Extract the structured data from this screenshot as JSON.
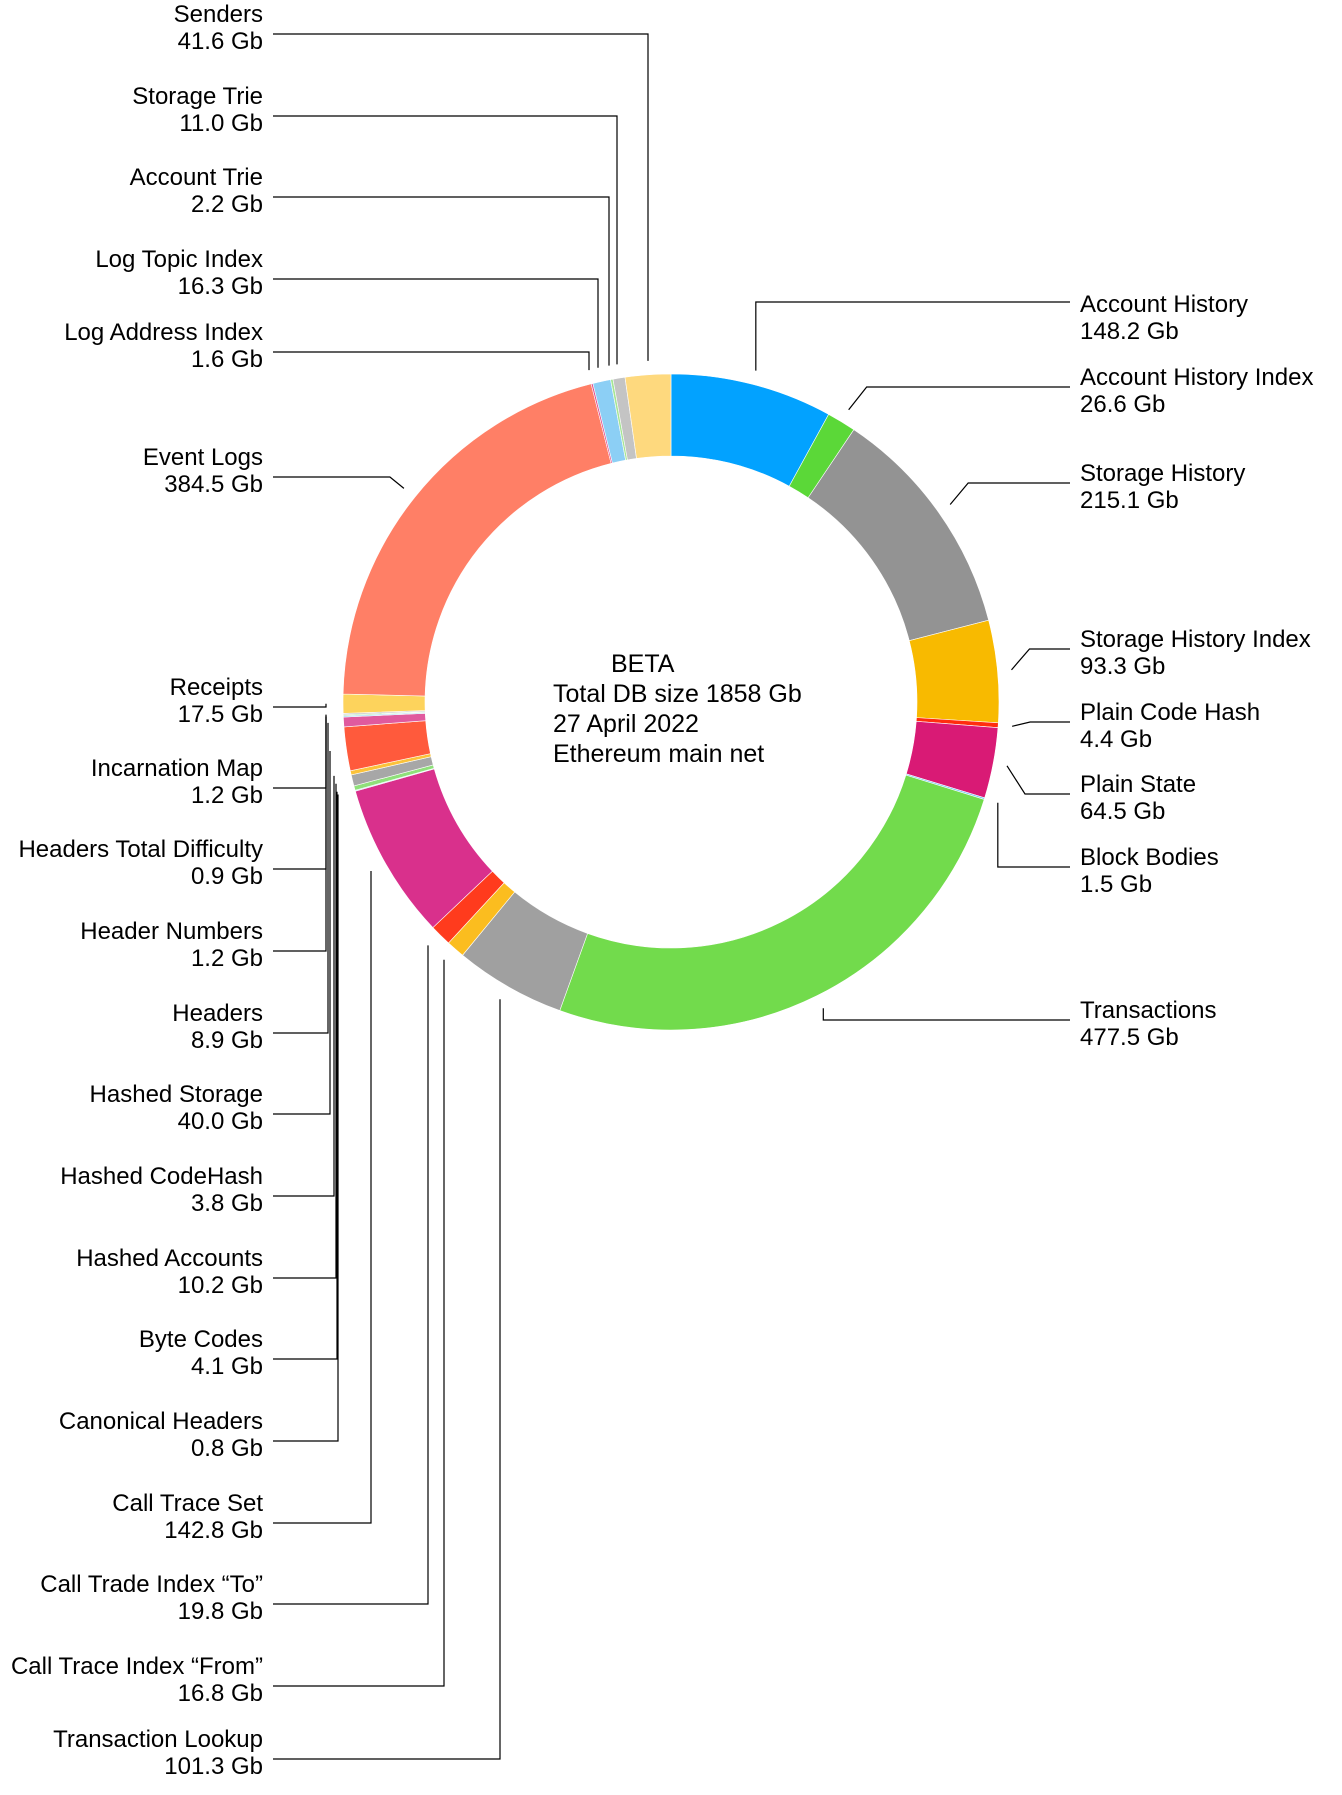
{
  "chart_data": {
    "type": "pie",
    "variant": "donut",
    "unit": "Gb",
    "center_text": [
      "BETA",
      "Total DB size 1858 Gb",
      "27 April 2022",
      "Ethereum main net"
    ],
    "slices": [
      {
        "label": "Account History",
        "value": 148.2,
        "value_text": "148.2 Gb",
        "color": "#02a2ff"
      },
      {
        "label": "Account History Index",
        "value": 26.6,
        "value_text": "26.6 Gb",
        "color": "#5bd838"
      },
      {
        "label": "Storage History",
        "value": 215.1,
        "value_text": "215.1 Gb",
        "color": "#939393"
      },
      {
        "label": "Storage History Index",
        "value": 93.3,
        "value_text": "93.3 Gb",
        "color": "#f8ba00"
      },
      {
        "label": "Plain Code Hash",
        "value": 4.4,
        "value_text": "4.4 Gb",
        "color": "#ff2d0e"
      },
      {
        "label": "Plain State",
        "value": 64.5,
        "value_text": "64.5 Gb",
        "color": "#d91a75"
      },
      {
        "label": "Block Bodies",
        "value": 1.5,
        "value_text": "1.5 Gb",
        "color": "#74c8f0"
      },
      {
        "label": "Transactions",
        "value": 477.5,
        "value_text": "477.5 Gb",
        "color": "#72db4c"
      },
      {
        "label": "Transaction Lookup",
        "value": 101.3,
        "value_text": "101.3 Gb",
        "color": "#a0a0a0"
      },
      {
        "label": "Call Trace Index “From”",
        "value": 16.8,
        "value_text": "16.8 Gb",
        "color": "#fbbd1f"
      },
      {
        "label": "Call Trade Index “To”",
        "value": 19.8,
        "value_text": "19.8 Gb",
        "color": "#ff3b1d"
      },
      {
        "label": "Call Trace Set",
        "value": 142.8,
        "value_text": "142.8 Gb",
        "color": "#d9308c"
      },
      {
        "label": "Canonical Headers",
        "value": 0.8,
        "value_text": "0.8 Gb",
        "color": "#9ad7f5"
      },
      {
        "label": "Byte Codes",
        "value": 4.1,
        "value_text": "4.1 Gb",
        "color": "#8fe07a"
      },
      {
        "label": "Hashed Accounts",
        "value": 10.2,
        "value_text": "10.2 Gb",
        "color": "#a7a7a7"
      },
      {
        "label": "Hashed CodeHash",
        "value": 3.8,
        "value_text": "3.8 Gb",
        "color": "#fbc23a"
      },
      {
        "label": "Hashed Storage",
        "value": 40.0,
        "value_text": "40.0 Gb",
        "color": "#ff5a3c"
      },
      {
        "label": "Headers",
        "value": 8.9,
        "value_text": "8.9 Gb",
        "color": "#e05a9e"
      },
      {
        "label": "Header Numbers",
        "value": 1.2,
        "value_text": "1.2 Gb",
        "color": "#9bd5f2"
      },
      {
        "label": "Headers Total Difficulty",
        "value": 0.9,
        "value_text": "0.9 Gb",
        "color": "#9ae08a"
      },
      {
        "label": "Incarnation Map",
        "value": 1.2,
        "value_text": "1.2 Gb",
        "color": "#bdbdbd"
      },
      {
        "label": "Receipts",
        "value": 17.5,
        "value_text": "17.5 Gb",
        "color": "#fdd35c"
      },
      {
        "label": "Event Logs",
        "value": 384.5,
        "value_text": "384.5 Gb",
        "color": "#ff7f66"
      },
      {
        "label": "Log Address Index",
        "value": 1.6,
        "value_text": "1.6 Gb",
        "color": "#e0508f"
      },
      {
        "label": "Log Topic Index",
        "value": 16.3,
        "value_text": "16.3 Gb",
        "color": "#8ccff5"
      },
      {
        "label": "Account Trie",
        "value": 2.2,
        "value_text": "2.2 Gb",
        "color": "#a6e594"
      },
      {
        "label": "Storage Trie",
        "value": 11.0,
        "value_text": "11.0 Gb",
        "color": "#c4c4c4"
      },
      {
        "label": "Senders",
        "value": 41.6,
        "value_text": "41.6 Gb",
        "color": "#fed97e"
      }
    ]
  }
}
